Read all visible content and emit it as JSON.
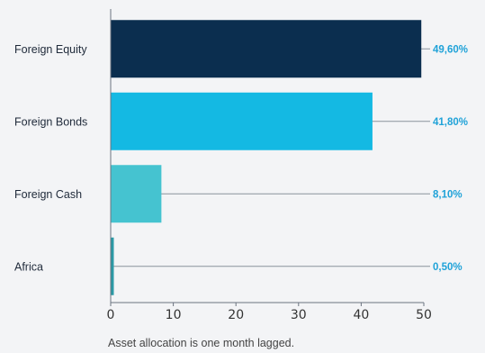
{
  "chart_data": {
    "type": "bar",
    "orientation": "horizontal",
    "categories": [
      "Foreign Equity",
      "Foreign Bonds",
      "Foreign Cash",
      "Africa"
    ],
    "values": [
      49.6,
      41.8,
      8.1,
      0.5
    ],
    "value_labels": [
      "49,60%",
      "41,80%",
      "8,10%",
      "0,50%"
    ],
    "bar_colors": [
      "#0b2e4f",
      "#14b9e3",
      "#45c3d0",
      "#2b9aa6"
    ],
    "value_label_color": "#1fa2d8",
    "xlim": [
      0,
      50
    ],
    "xticks": [
      "0",
      "10",
      "20",
      "30",
      "40",
      "50"
    ],
    "grid": false,
    "note": "Asset allocation is one month lagged."
  }
}
